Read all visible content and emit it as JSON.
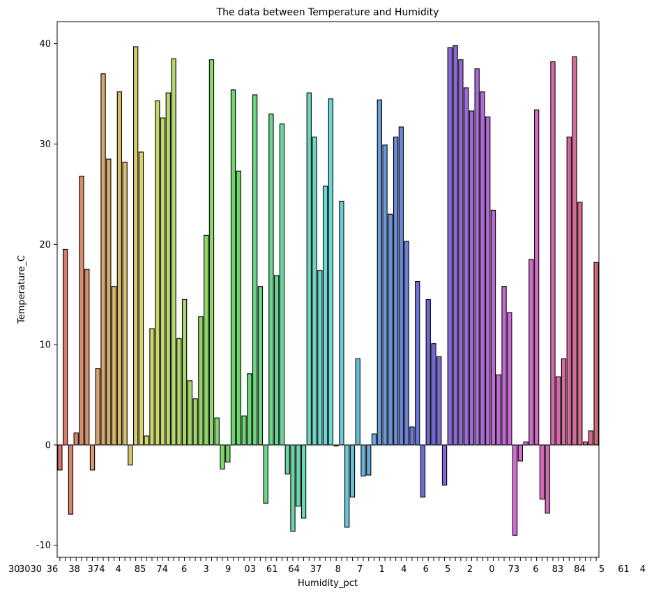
{
  "chart_data": {
    "type": "bar",
    "title": "The data between Temperature and Humidity",
    "xlabel": "Humidity_pct",
    "ylabel": "Temperature_C",
    "ylim": [
      -11.2,
      42.2
    ],
    "yticks": [
      -10,
      0,
      10,
      20,
      30,
      40
    ],
    "grid": false,
    "legend": "none",
    "x_tick_labels_visible": [
      "30.",
      "3030",
      "36",
      "38",
      "374",
      "4",
      "85",
      "74",
      "6",
      "3",
      "9",
      "03",
      "61",
      "64",
      "37",
      "8",
      "7",
      "1",
      "4",
      "6",
      "5",
      "2",
      "0",
      "73",
      "6",
      "83",
      "84",
      "5",
      "61",
      "4"
    ],
    "values": [
      -2.5,
      19.5,
      -6.9,
      1.2,
      26.8,
      17.5,
      -2.5,
      7.6,
      37.0,
      28.5,
      15.8,
      35.2,
      28.2,
      -2.0,
      39.7,
      29.2,
      0.9,
      11.6,
      34.3,
      32.6,
      35.1,
      38.5,
      10.6,
      14.5,
      6.4,
      4.6,
      12.8,
      20.9,
      38.4,
      2.7,
      -2.4,
      -1.7,
      35.4,
      27.3,
      2.9,
      7.1,
      34.9,
      15.8,
      -5.8,
      33.0,
      16.9,
      32.0,
      -2.9,
      -8.6,
      -6.1,
      -7.3,
      35.1,
      30.7,
      17.4,
      25.8,
      34.5,
      -0.1,
      24.3,
      -8.2,
      -5.2,
      8.6,
      -3.1,
      -3.0,
      1.1,
      34.4,
      29.9,
      23.0,
      30.7,
      31.7,
      20.3,
      1.8,
      16.3,
      -5.2,
      14.5,
      10.1,
      8.8,
      -4.0,
      39.6,
      39.8,
      38.4,
      35.6,
      33.3,
      37.5,
      35.2,
      32.7,
      23.4,
      7.0,
      15.8,
      13.2,
      -9.0,
      -1.6,
      0.3,
      18.5,
      33.4,
      -5.4,
      -6.8,
      38.2,
      6.8,
      8.6,
      30.7,
      38.7,
      24.2,
      0.3,
      1.4,
      18.2
    ],
    "bar_edge_color": "#000000"
  }
}
